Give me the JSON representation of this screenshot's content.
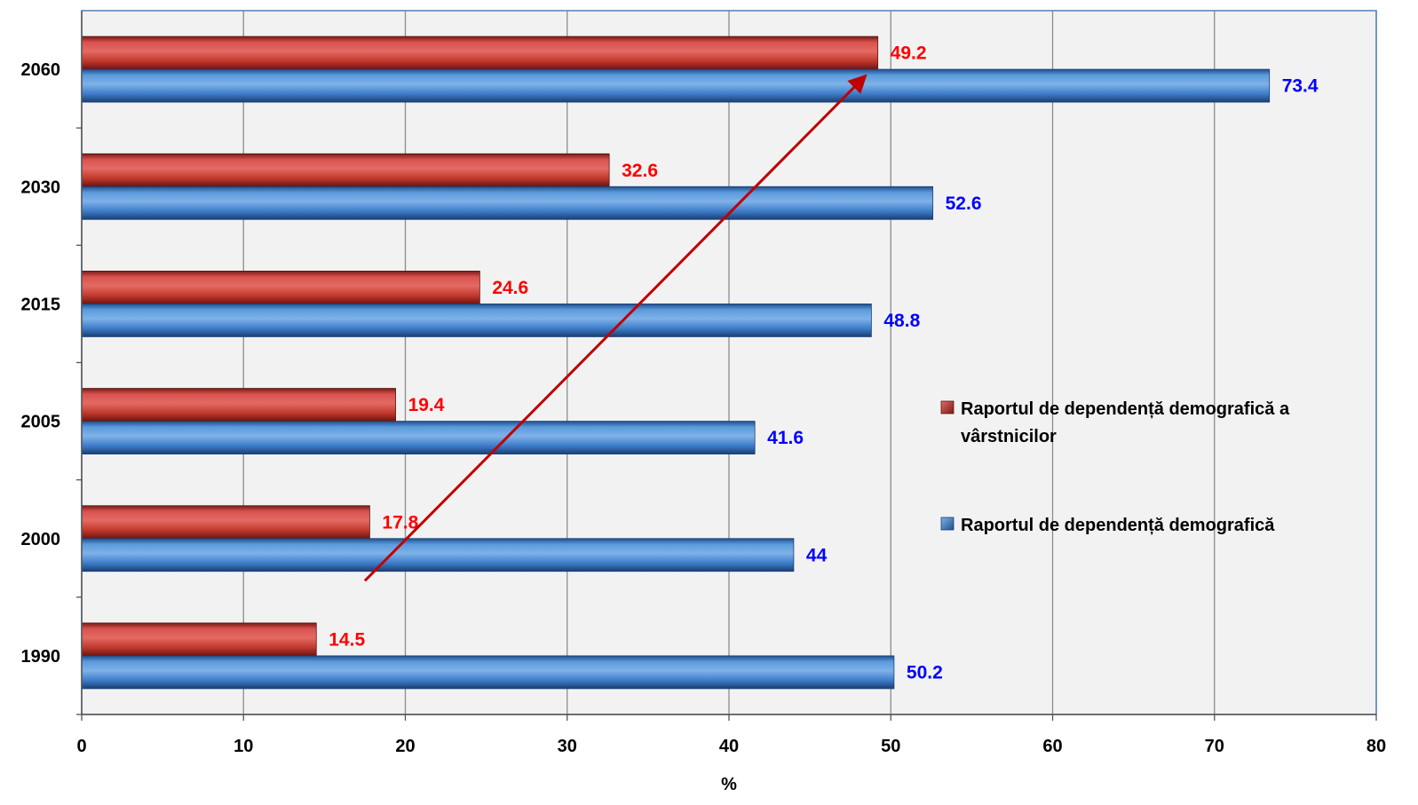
{
  "chart_data": {
    "type": "bar",
    "orientation": "horizontal",
    "categories": [
      "1990",
      "2000",
      "2005",
      "2015",
      "2030",
      "2060"
    ],
    "series": [
      {
        "name": "Raportul de dependență demografică a vârstnicilor",
        "legend_lines": [
          "Raportul de dependență demografică a",
          "vârstnicilor"
        ],
        "values": [
          14.5,
          17.8,
          19.4,
          24.6,
          32.6,
          49.2
        ],
        "labels": [
          "14.5",
          "17.8",
          "19.4",
          "24.6",
          "32.6",
          "49.2"
        ],
        "color": "#c0392b",
        "label_color": "#ff0000"
      },
      {
        "name": "Raportul de dependență demografică",
        "legend_lines": [
          "Raportul de dependență demografică"
        ],
        "values": [
          50.2,
          44,
          41.6,
          48.8,
          52.6,
          73.4
        ],
        "labels": [
          "50.2",
          "44",
          "41.6",
          "48.8",
          "52.6",
          "73.4"
        ],
        "color": "#3d7cc9",
        "label_color": "#0000ff"
      }
    ],
    "xlabel": "%",
    "ylabel": "",
    "xlim": [
      0,
      80
    ],
    "xticks": [
      0,
      10,
      20,
      30,
      40,
      50,
      60,
      70,
      80
    ],
    "xtick_labels": [
      "0",
      "10",
      "20",
      "30",
      "40",
      "50",
      "60",
      "70",
      "80"
    ],
    "grid": "vertical",
    "legend": "right",
    "annotation": {
      "type": "arrow",
      "from": [
        17.5,
        "2000"
      ],
      "to": [
        48.4,
        "2060"
      ],
      "color": "#c00000"
    }
  }
}
